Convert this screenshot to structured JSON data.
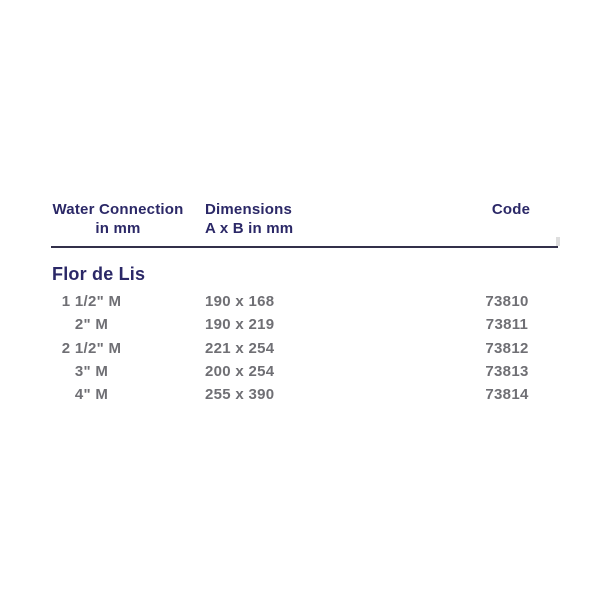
{
  "table": {
    "headers": {
      "col1": [
        "Water Connection",
        "in mm"
      ],
      "col2": [
        "Dimensions",
        "A x B in mm"
      ],
      "col3": "Code"
    },
    "section_title": "Flor de Lis",
    "rows": [
      {
        "connection": "1 1/2\" M",
        "dimensions": "190 x 168",
        "code": "73810"
      },
      {
        "connection": "2\" M",
        "dimensions": "190 x 219",
        "code": "73811"
      },
      {
        "connection": "2 1/2\" M",
        "dimensions": "221 x 254",
        "code": "73812"
      },
      {
        "connection": "3\" M",
        "dimensions": "200 x 254",
        "code": "73813"
      },
      {
        "connection": "4\" M",
        "dimensions": "255 x 390",
        "code": "73814"
      }
    ],
    "colors": {
      "header_text": "#2b2867",
      "section_text": "#2b2867",
      "data_text": "#6f6f74",
      "rule": "#32304a"
    }
  }
}
